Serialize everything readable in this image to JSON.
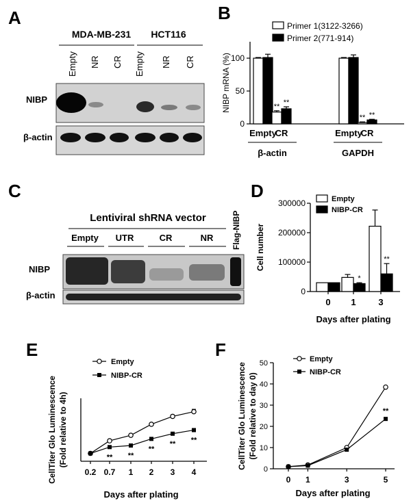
{
  "panels": {
    "A": {
      "letter": "A",
      "cell_lines": [
        "MDA-MB-231",
        "HCT116"
      ],
      "lanes": [
        "Empty",
        "NR",
        "CR",
        "Empty",
        "NR",
        "CR"
      ],
      "rows": [
        "NIBP",
        "β-actin"
      ]
    },
    "C": {
      "letter": "C",
      "header": "Lentiviral shRNA vector",
      "groups": [
        "Empty",
        "UTR",
        "CR",
        "NR"
      ],
      "extra_lane": "Flag-NIBP",
      "rows": [
        "NIBP",
        "β-actin"
      ]
    }
  },
  "chart_data": [
    {
      "panel": "B",
      "type": "bar",
      "ylabel": "NIBP mRNA (%)",
      "ylim": [
        0,
        125
      ],
      "yticks": [
        0,
        50,
        100
      ],
      "groups": [
        {
          "label": "β-actin",
          "categories": [
            "Empty",
            "CR"
          ]
        },
        {
          "label": "GAPDH",
          "categories": [
            "Empty",
            "CR"
          ]
        }
      ],
      "series": [
        {
          "name": "Primer 1(3122-3266)",
          "fill": "#ffffff",
          "values": [
            100,
            18,
            100,
            2
          ],
          "errors": [
            1,
            2,
            1,
            1
          ]
        },
        {
          "name": "Primer 2(771-914)",
          "fill": "#000000",
          "values": [
            101,
            23,
            101,
            6
          ],
          "errors": [
            5,
            3,
            4,
            1
          ]
        }
      ],
      "annotations": [
        "**",
        "**",
        "**",
        "**"
      ],
      "legend": "top-right"
    },
    {
      "panel": "D",
      "type": "bar",
      "ylabel": "Cell number",
      "xlabel": "Days after plating",
      "ylim": [
        0,
        300000
      ],
      "yticks": [
        0,
        100000,
        200000,
        300000
      ],
      "categories": [
        "0",
        "1",
        "3"
      ],
      "series": [
        {
          "name": "Empty",
          "fill": "#ffffff",
          "values": [
            30000,
            48000,
            222000
          ],
          "errors": [
            0,
            10000,
            55000
          ]
        },
        {
          "name": "NIBP-CR",
          "fill": "#000000",
          "values": [
            30000,
            27000,
            60000
          ],
          "errors": [
            0,
            3000,
            35000
          ]
        }
      ],
      "annotations": [
        "",
        "*",
        "**"
      ],
      "legend": "top-left"
    },
    {
      "panel": "E",
      "type": "line",
      "ylabel": "CellTiter Glo Luminescence",
      "ylabel2": "(Fold relative to 4h)",
      "xlabel": "Days after plating",
      "categories": [
        "0.2",
        "0.7",
        "1",
        "2",
        "3",
        "4"
      ],
      "ylim": [
        0.5,
        4.5
      ],
      "series": [
        {
          "name": "Empty",
          "marker": "open-circle",
          "values": [
            1.0,
            1.8,
            2.15,
            2.85,
            3.35,
            3.65
          ],
          "errors": [
            0.03,
            0.05,
            0.06,
            0.06,
            0.1,
            0.15
          ]
        },
        {
          "name": "NIBP-CR",
          "marker": "filled-square",
          "values": [
            1.0,
            1.4,
            1.5,
            1.92,
            2.25,
            2.48
          ],
          "errors": [
            0.03,
            0.04,
            0.05,
            0.04,
            0.05,
            0.05
          ]
        }
      ],
      "annotations": [
        "",
        "**",
        "**",
        "**",
        "**",
        "**"
      ],
      "legend": "top-left"
    },
    {
      "panel": "F",
      "type": "line",
      "ylabel": "CellTiter Glo Luminescence",
      "ylabel2": "(Fold relative to day 0)",
      "xlabel": "Days after plating",
      "x": [
        0,
        1,
        3,
        5
      ],
      "categories": [
        "0",
        "1",
        "3",
        "5"
      ],
      "ylim": [
        0,
        50
      ],
      "yticks": [
        0,
        10,
        20,
        30,
        40,
        50
      ],
      "series": [
        {
          "name": "Empty",
          "marker": "open-circle",
          "values": [
            1,
            1.8,
            10,
            38.5
          ]
        },
        {
          "name": "NIBP-CR",
          "marker": "filled-square",
          "values": [
            1,
            1.5,
            9,
            23.5
          ]
        }
      ],
      "annotations": [
        "",
        "",
        "",
        "**"
      ],
      "legend": "top-left"
    }
  ],
  "letters": {
    "A": "A",
    "B": "B",
    "C": "C",
    "D": "D",
    "E": "E",
    "F": "F"
  }
}
